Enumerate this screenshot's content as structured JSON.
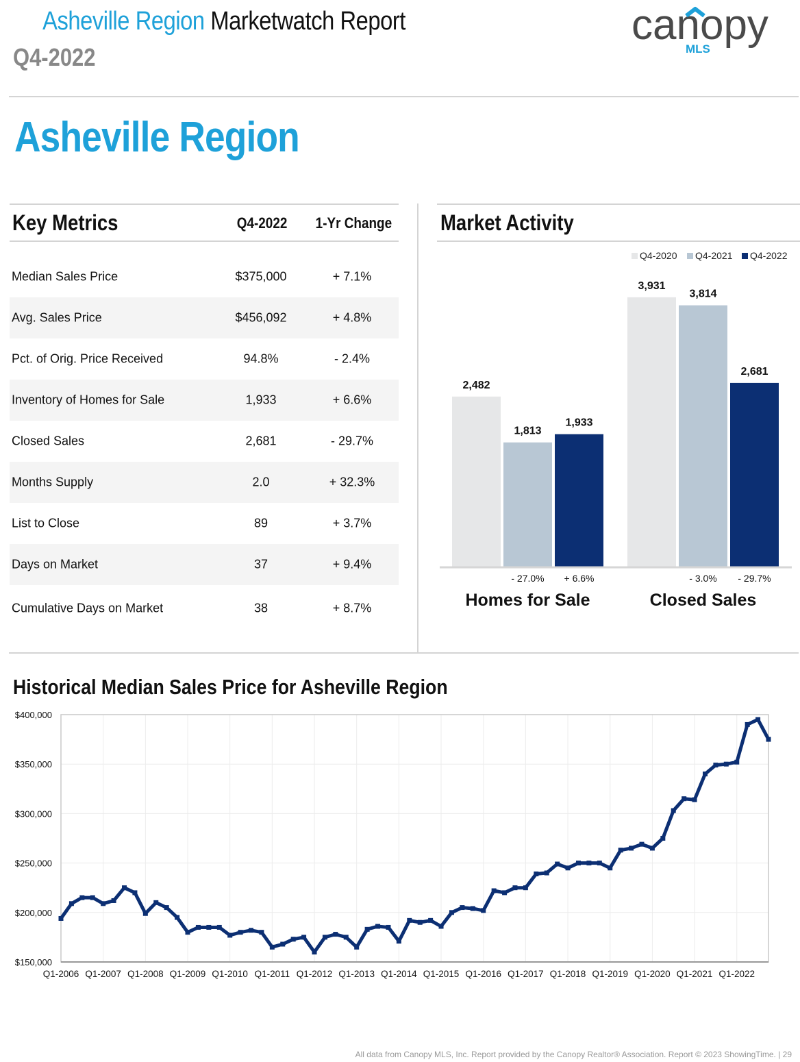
{
  "header": {
    "title_region": "Asheville Region",
    "title_rest": "Marketwatch Report",
    "period": "Q4-2022",
    "logo_word": "canopy",
    "logo_sub": "MLS"
  },
  "region_title": "Asheville Region",
  "key_metrics": {
    "title": "Key Metrics",
    "col_period": "Q4-2022",
    "col_change": "1-Yr Change",
    "rows": [
      {
        "label": "Median Sales Price",
        "value": "$375,000",
        "change": "+ 7.1%"
      },
      {
        "label": "Avg. Sales Price",
        "value": "$456,092",
        "change": "+ 4.8%"
      },
      {
        "label": "Pct. of Orig. Price Received",
        "value": "94.8%",
        "change": "- 2.4%"
      },
      {
        "label": "Inventory of Homes for Sale",
        "value": "1,933",
        "change": "+ 6.6%"
      },
      {
        "label": "Closed Sales",
        "value": "2,681",
        "change": "- 29.7%"
      },
      {
        "label": "Months Supply",
        "value": "2.0",
        "change": "+ 32.3%"
      },
      {
        "label": "List to Close",
        "value": "89",
        "change": "+ 3.7%"
      },
      {
        "label": "Days on Market",
        "value": "37",
        "change": "+ 9.4%"
      },
      {
        "label": "Cumulative Days on Market",
        "value": "38",
        "change": "+ 8.7%"
      }
    ]
  },
  "market_activity": {
    "title": "Market Activity"
  },
  "colors": {
    "accent": "#1ea1d9",
    "q2020": "#e6e7e8",
    "q2021": "#b8c7d4",
    "q2022": "#0c2f73",
    "logo_gray": "#4a4a4a"
  },
  "chart_data": [
    {
      "type": "bar",
      "title": "Market Activity",
      "categories": [
        "Homes for Sale",
        "Closed Sales"
      ],
      "series": [
        {
          "name": "Q4-2020",
          "values": [
            2482,
            3931
          ],
          "labels": [
            "2,482",
            "3,931"
          ]
        },
        {
          "name": "Q4-2021",
          "values": [
            1813,
            3814
          ],
          "labels": [
            "1,813",
            "3,814"
          ],
          "changes": [
            "- 27.0%",
            "- 3.0%"
          ]
        },
        {
          "name": "Q4-2022",
          "values": [
            1933,
            2681
          ],
          "labels": [
            "1,933",
            "2,681"
          ],
          "changes": [
            "+ 6.6%",
            "- 29.7%"
          ]
        }
      ],
      "ylim": [
        0,
        4500
      ],
      "legend": "top-right"
    },
    {
      "type": "line",
      "title": "Historical Median Sales Price for Asheville Region",
      "xlabel": "",
      "ylabel": "",
      "ylim": [
        150000,
        400000
      ],
      "yticks": [
        150000,
        200000,
        250000,
        300000,
        350000,
        400000
      ],
      "ytick_labels": [
        "$150,000",
        "$200,000",
        "$250,000",
        "$300,000",
        "$350,000",
        "$400,000"
      ],
      "xtick_labels": [
        "Q1-2006",
        "Q1-2007",
        "Q1-2008",
        "Q1-2009",
        "Q1-2010",
        "Q1-2011",
        "Q1-2012",
        "Q1-2013",
        "Q1-2014",
        "Q1-2015",
        "Q1-2016",
        "Q1-2017",
        "Q1-2018",
        "Q1-2019",
        "Q1-2020",
        "Q1-2021",
        "Q1-2022"
      ],
      "values": [
        194000,
        209000,
        215000,
        215000,
        209000,
        212000,
        225000,
        220000,
        199000,
        210000,
        205000,
        195000,
        180000,
        185000,
        185000,
        185000,
        177000,
        180000,
        182000,
        180000,
        165000,
        168000,
        173000,
        175000,
        160000,
        175000,
        178000,
        175000,
        165000,
        183000,
        186000,
        185000,
        171000,
        192000,
        190000,
        192000,
        186000,
        200000,
        205000,
        204000,
        202000,
        222000,
        220000,
        225000,
        225000,
        239000,
        240000,
        249000,
        245000,
        250000,
        250000,
        250000,
        245000,
        263000,
        265000,
        269000,
        265000,
        275000,
        303000,
        315000,
        314000,
        340000,
        349000,
        350000,
        352000,
        390000,
        395000,
        375000
      ],
      "grid": true
    }
  ],
  "footer": "All data from Canopy MLS, Inc. Report provided by the Canopy Realtor® Association. Report © 2023 ShowingTime.  |  29"
}
